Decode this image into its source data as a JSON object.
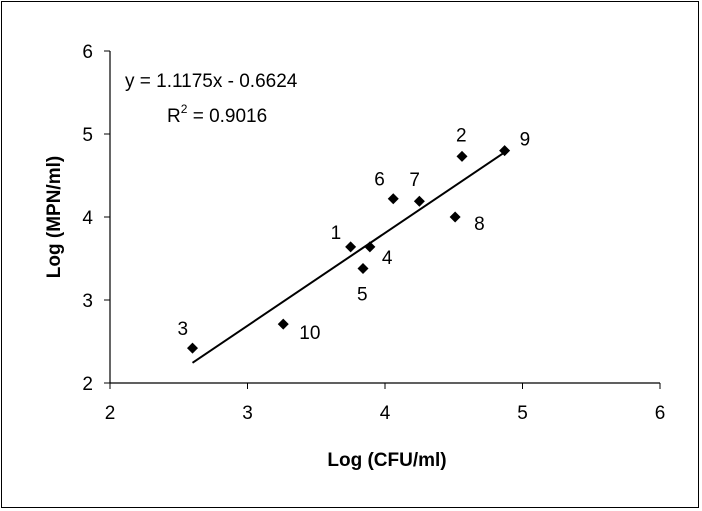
{
  "chart_data": {
    "type": "scatter",
    "xlabel": "Log (CFU/ml)",
    "ylabel": "Log (MPN/ml)",
    "xlim": [
      2,
      6
    ],
    "ylim": [
      2,
      6
    ],
    "xticks": [
      "2",
      "3",
      "4",
      "5",
      "6"
    ],
    "yticks": [
      "2",
      "3",
      "4",
      "5",
      "6"
    ],
    "grid": false,
    "legend": "none",
    "points": [
      {
        "label": "1",
        "x": 3.75,
        "y": 3.64
      },
      {
        "label": "2",
        "x": 4.56,
        "y": 4.73
      },
      {
        "label": "3",
        "x": 2.6,
        "y": 2.42
      },
      {
        "label": "4",
        "x": 3.89,
        "y": 3.64
      },
      {
        "label": "5",
        "x": 3.84,
        "y": 3.38
      },
      {
        "label": "6",
        "x": 4.06,
        "y": 4.22
      },
      {
        "label": "7",
        "x": 4.25,
        "y": 4.19
      },
      {
        "label": "8",
        "x": 4.51,
        "y": 4.0
      },
      {
        "label": "9",
        "x": 4.87,
        "y": 4.8
      },
      {
        "label": "10",
        "x": 3.26,
        "y": 2.71
      }
    ],
    "trendline": {
      "slope": 1.1175,
      "intercept": -0.6624,
      "x_start": 2.6,
      "x_end": 4.87
    },
    "equation_text": "y = 1.1175x - 0.6624",
    "r2_prefix": "R",
    "r2_sup": "2",
    "r2_value": " = 0.9016",
    "marker_color": "#000000"
  }
}
